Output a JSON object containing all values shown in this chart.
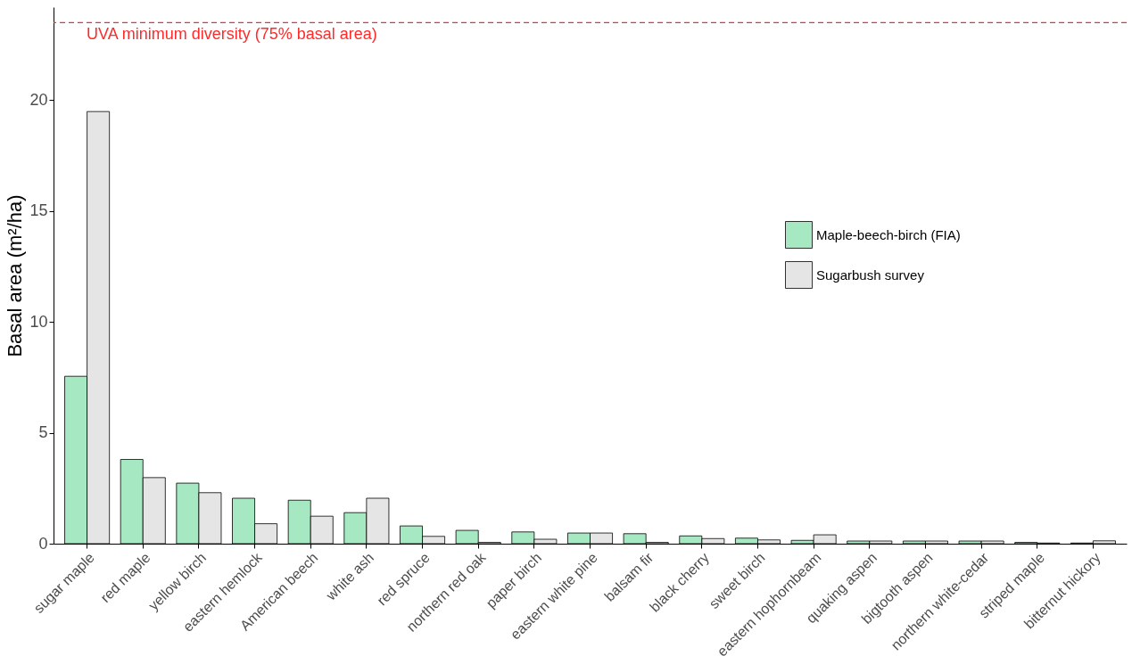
{
  "chart_data": {
    "type": "bar",
    "ylabel": "Basal area (m²/ha)",
    "categories": [
      "sugar maple",
      "red maple",
      "yellow birch",
      "eastern hemlock",
      "American beech",
      "white ash",
      "red spruce",
      "northern red oak",
      "paper birch",
      "eastern white pine",
      "balsam fir",
      "black cherry",
      "sweet birch",
      "eastern hophornbeam",
      "quaking aspen",
      "bigtooth aspen",
      "northern white-cedar",
      "striped maple",
      "bitternut hickory"
    ],
    "series": [
      {
        "name": "Maple-beech-birch (FIA)",
        "color": "#a6e8c2",
        "values": [
          7.55,
          3.8,
          2.73,
          2.05,
          1.96,
          1.4,
          0.8,
          0.6,
          0.53,
          0.48,
          0.45,
          0.35,
          0.25,
          0.15,
          0.12,
          0.12,
          0.12,
          0.06,
          0.03
        ]
      },
      {
        "name": "Sugarbush survey",
        "color": "#e5e5e5",
        "values": [
          19.49,
          2.98,
          2.3,
          0.9,
          1.24,
          2.05,
          0.33,
          0.06,
          0.2,
          0.48,
          0.06,
          0.23,
          0.17,
          0.4,
          0.12,
          0.12,
          0.12,
          0.03,
          0.13
        ]
      }
    ],
    "ylim": [
      0,
      24.2
    ],
    "yticks": [
      0,
      5,
      10,
      15,
      20
    ],
    "grid": false,
    "legend": "right",
    "ref_lines": [
      {
        "axis": "y",
        "value": 23.5,
        "label": "UVA minimum diversity (75% basal area)",
        "color": "#ff2a2a",
        "line_style": "dashed"
      }
    ]
  }
}
